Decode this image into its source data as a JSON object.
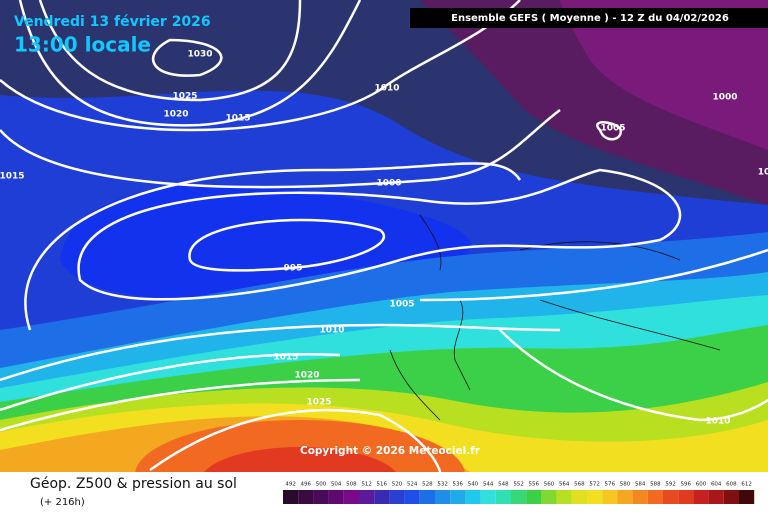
{
  "header": {
    "date": "Vendredi 13 février 2026",
    "time": "13:00 locale",
    "model": "Ensemble GEFS ( Moyenne ) - 12 Z du 04/02/2026"
  },
  "isobar_labels": [
    "1030",
    "1025",
    "1020",
    "1015",
    "1010",
    "1000",
    "1005",
    "1000",
    "1015",
    "10",
    "995",
    "1005",
    "1010",
    "1015",
    "1020",
    "1025",
    "1010"
  ],
  "copyright": "Copyright © 2026 Meteociel.fr",
  "footer": {
    "title": "Géop. Z500 & pression au sol",
    "lead": "(+ 216h)"
  },
  "colorbar": {
    "ticks": [
      492,
      496,
      500,
      504,
      508,
      512,
      516,
      520,
      524,
      528,
      532,
      536,
      540,
      544,
      548,
      552,
      556,
      560,
      564,
      568,
      572,
      576,
      580,
      584,
      588,
      592,
      596,
      600,
      604,
      608,
      612
    ]
  }
}
